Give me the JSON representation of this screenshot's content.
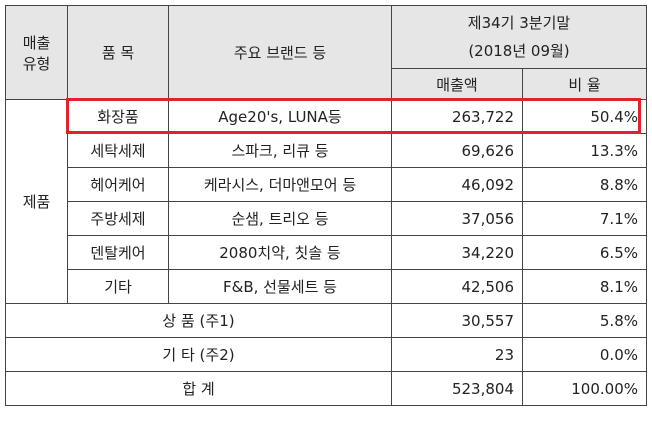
{
  "headers": {
    "type": "매출\n유형",
    "item": "품 목",
    "brand": "주요 브랜드 등",
    "period_line1": "제34기 3분기말",
    "period_line2": "(2018년 09월)",
    "sales": "매출액",
    "ratio": "비 율"
  },
  "group_label": "제품",
  "rows": [
    {
      "item": "화장품",
      "brand": "Age20's, LUNA등",
      "sales": "263,722",
      "ratio": "50.4%"
    },
    {
      "item": "세탁세제",
      "brand": "스파크, 리큐 등",
      "sales": "69,626",
      "ratio": "13.3%"
    },
    {
      "item": "헤어케어",
      "brand": "케라시스, 더마앤모어 등",
      "sales": "46,092",
      "ratio": "8.8%"
    },
    {
      "item": "주방세제",
      "brand": "순샘, 트리오 등",
      "sales": "37,056",
      "ratio": "7.1%"
    },
    {
      "item": "덴탈케어",
      "brand": "2080치약, 칫솔 등",
      "sales": "34,220",
      "ratio": "6.5%"
    },
    {
      "item": "기타",
      "brand": "F&B, 선물세트 등",
      "sales": "42,506",
      "ratio": "8.1%"
    }
  ],
  "extra_rows": [
    {
      "label": "상 품 (주1)",
      "sales": "30,557",
      "ratio": "5.8%"
    },
    {
      "label": "기 타 (주2)",
      "sales": "23",
      "ratio": "0.0%"
    },
    {
      "label": "합 계",
      "sales": "523,804",
      "ratio": "100.00%"
    }
  ],
  "highlight_color": "#e0232b"
}
